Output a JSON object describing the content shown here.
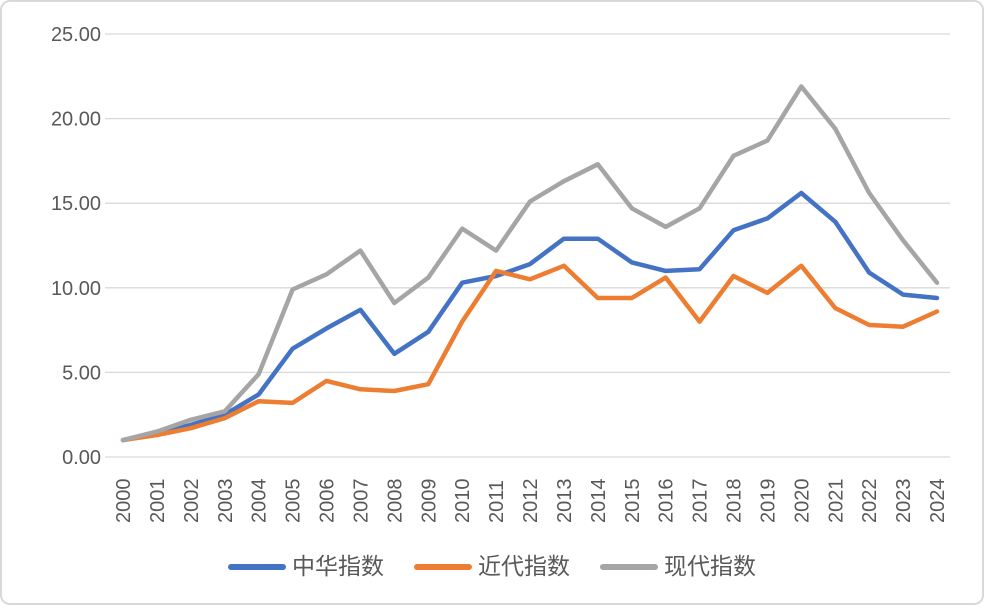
{
  "chart_data": {
    "type": "line",
    "title": "",
    "xlabel": "",
    "ylabel": "",
    "categories": [
      "2000",
      "2001",
      "2002",
      "2003",
      "2004",
      "2005",
      "2006",
      "2007",
      "2008",
      "2009",
      "2010",
      "2011",
      "2012",
      "2013",
      "2014",
      "2015",
      "2016",
      "2017",
      "2018",
      "2019",
      "2020",
      "2021",
      "2022",
      "2023",
      "2024"
    ],
    "series": [
      {
        "key": "zhonghua-index",
        "name": "中华指数",
        "color": "#4472C4",
        "values": [
          1.0,
          1.4,
          1.9,
          2.5,
          3.7,
          6.4,
          7.6,
          8.7,
          6.1,
          7.4,
          10.3,
          10.7,
          11.4,
          12.9,
          12.9,
          11.5,
          11.0,
          11.1,
          13.4,
          14.1,
          15.6,
          13.9,
          10.9,
          9.6,
          9.4
        ]
      },
      {
        "key": "jindai-index",
        "name": "近代指数",
        "color": "#ED7D31",
        "values": [
          1.0,
          1.3,
          1.7,
          2.3,
          3.3,
          3.2,
          4.5,
          4.0,
          3.9,
          4.3,
          8.0,
          11.0,
          10.5,
          11.3,
          9.4,
          9.4,
          10.6,
          8.0,
          10.7,
          9.7,
          11.3,
          8.8,
          7.8,
          7.7,
          8.6
        ]
      },
      {
        "key": "xiandai-index",
        "name": "现代指数",
        "color": "#A5A5A5",
        "values": [
          1.0,
          1.5,
          2.2,
          2.7,
          4.9,
          9.9,
          10.8,
          12.2,
          9.1,
          10.6,
          13.5,
          12.2,
          15.1,
          16.3,
          17.3,
          14.7,
          13.6,
          14.7,
          17.8,
          18.7,
          21.9,
          19.4,
          15.6,
          12.8,
          10.3
        ]
      }
    ],
    "y_axis": {
      "min": 0,
      "max": 25,
      "step": 5,
      "tick_labels": [
        "0.00",
        "5.00",
        "10.00",
        "15.00",
        "20.00",
        "25.00"
      ]
    },
    "grid": true,
    "gridline_color": "#D9D9D9",
    "axis_text_color": "#595959",
    "legend_position": "bottom"
  }
}
